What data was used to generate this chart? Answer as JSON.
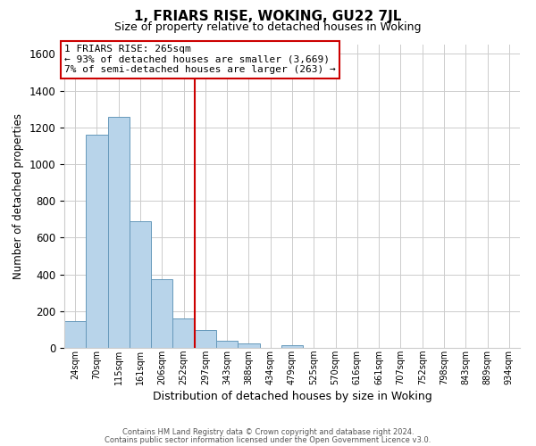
{
  "title": "1, FRIARS RISE, WOKING, GU22 7JL",
  "subtitle": "Size of property relative to detached houses in Woking",
  "xlabel": "Distribution of detached houses by size in Woking",
  "ylabel": "Number of detached properties",
  "bar_labels": [
    "24sqm",
    "70sqm",
    "115sqm",
    "161sqm",
    "206sqm",
    "252sqm",
    "297sqm",
    "343sqm",
    "388sqm",
    "434sqm",
    "479sqm",
    "525sqm",
    "570sqm",
    "616sqm",
    "661sqm",
    "707sqm",
    "752sqm",
    "798sqm",
    "843sqm",
    "889sqm",
    "934sqm"
  ],
  "bar_values": [
    148,
    1160,
    1255,
    690,
    375,
    160,
    95,
    40,
    22,
    0,
    15,
    0,
    0,
    0,
    0,
    0,
    0,
    0,
    0,
    0,
    0
  ],
  "bar_color": "#b8d4ea",
  "bar_edge_color": "#6699bb",
  "vline_color": "#cc0000",
  "ylim": [
    0,
    1650
  ],
  "yticks": [
    0,
    200,
    400,
    600,
    800,
    1000,
    1200,
    1400,
    1600
  ],
  "annotation_lines": [
    "1 FRIARS RISE: 265sqm",
    "← 93% of detached houses are smaller (3,669)",
    "7% of semi-detached houses are larger (263) →"
  ],
  "footer1": "Contains HM Land Registry data © Crown copyright and database right 2024.",
  "footer2": "Contains public sector information licensed under the Open Government Licence v3.0.",
  "bg_color": "#ffffff",
  "grid_color": "#cccccc"
}
